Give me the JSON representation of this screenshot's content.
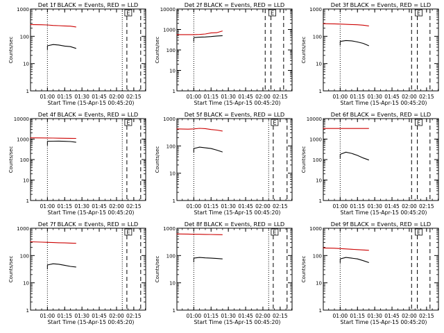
{
  "chart_data": [
    {
      "type": "line",
      "title": "Det 1f BLACK = Events, RED = LLD",
      "xlabel": "Start Time (15-Apr-15 00:45:20)",
      "ylabel": "Counts/sec",
      "xtick_labels": [
        "01:00",
        "01:15",
        "01:30",
        "01:45",
        "02:00",
        "02:15"
      ],
      "ytick_labels": [
        "1",
        "10",
        "100",
        "1000"
      ],
      "ylim": [
        1,
        1000
      ],
      "log_y": true,
      "markers": [
        {
          "label": "",
          "style": "dotted",
          "x": "01:00"
        },
        {
          "label": "",
          "style": "dotted",
          "x": "02:05"
        },
        {
          "label": "E",
          "style": "dashed",
          "x": "02:09"
        },
        {
          "label": "",
          "style": "dashed",
          "x": "02:21"
        }
      ],
      "series": [
        {
          "color": "#cc0000",
          "x": [
            "00:45",
            "00:55",
            "01:00",
            "01:05",
            "01:10",
            "01:15",
            "01:20",
            "01:25"
          ],
          "y": [
            270,
            265,
            260,
            250,
            245,
            240,
            235,
            220
          ]
        },
        {
          "color": "#000000",
          "x": [
            "01:00",
            "01:05",
            "01:10",
            "01:15",
            "01:20",
            "01:25"
          ],
          "y": [
            45,
            50,
            48,
            44,
            42,
            36
          ]
        }
      ]
    },
    {
      "type": "line",
      "title": "Det 2f BLACK = Events, RED = LLD",
      "xlabel": "Start Time (15-Apr-15 00:45:20)",
      "ylabel": "Counts/sec",
      "xtick_labels": [
        "01:00",
        "01:15",
        "01:30",
        "01:45",
        "02:00",
        "02:15"
      ],
      "ytick_labels": [
        "1",
        "10",
        "100",
        "1000",
        "10000"
      ],
      "ylim": [
        1,
        10000
      ],
      "log_y": true,
      "markers": [
        {
          "label": "",
          "style": "dotted",
          "x": "01:00"
        },
        {
          "label": "",
          "style": "dashed",
          "x": "02:02"
        },
        {
          "label": "E",
          "style": "dashed",
          "x": "02:07"
        },
        {
          "label": "",
          "style": "dashed",
          "x": "02:18"
        }
      ],
      "series": [
        {
          "color": "#cc0000",
          "x": [
            "00:45",
            "00:55",
            "01:00",
            "01:05",
            "01:10",
            "01:15",
            "01:20",
            "01:25"
          ],
          "y": [
            560,
            560,
            560,
            570,
            600,
            680,
            700,
            850
          ]
        },
        {
          "color": "#000000",
          "x": [
            "01:00",
            "01:05",
            "01:10",
            "01:15",
            "01:20",
            "01:25"
          ],
          "y": [
            400,
            420,
            430,
            450,
            480,
            500
          ]
        }
      ]
    },
    {
      "type": "line",
      "title": "Det 3f BLACK = Events, RED = LLD",
      "xlabel": "Start Time (15-Apr-15 00:45:20)",
      "ylabel": "Counts/sec",
      "xtick_labels": [
        "01:00",
        "01:15",
        "01:30",
        "01:45",
        "02:00",
        "02:15"
      ],
      "ytick_labels": [
        "1",
        "10",
        "100",
        "1000"
      ],
      "ylim": [
        1,
        1000
      ],
      "log_y": true,
      "markers": [
        {
          "label": "",
          "style": "dotted",
          "x": "01:00"
        },
        {
          "label": "",
          "style": "dashed",
          "x": "02:02"
        },
        {
          "label": "E",
          "style": "dashed",
          "x": "02:07"
        },
        {
          "label": "",
          "style": "dashed",
          "x": "02:18"
        }
      ],
      "series": [
        {
          "color": "#cc0000",
          "x": [
            "00:45",
            "00:55",
            "01:00",
            "01:05",
            "01:10",
            "01:15",
            "01:20",
            "01:25"
          ],
          "y": [
            290,
            285,
            280,
            275,
            270,
            265,
            255,
            240
          ]
        },
        {
          "color": "#000000",
          "x": [
            "01:00",
            "01:05",
            "01:10",
            "01:15",
            "01:20",
            "01:25"
          ],
          "y": [
            65,
            70,
            68,
            62,
            55,
            45
          ]
        }
      ]
    },
    {
      "type": "line",
      "title": "Det 4f BLACK = Events, RED = LLD",
      "xlabel": "Start Time (15-Apr-15 00:45:20)",
      "ylabel": "Counts/sec",
      "xtick_labels": [
        "01:00",
        "01:15",
        "01:30",
        "01:45",
        "02:00",
        "02:15"
      ],
      "ytick_labels": [
        "1",
        "10",
        "100",
        "1000",
        "10000"
      ],
      "ylim": [
        1,
        10000
      ],
      "log_y": true,
      "markers": [
        {
          "label": "",
          "style": "dotted",
          "x": "01:00"
        },
        {
          "label": "",
          "style": "dotted",
          "x": "02:05"
        },
        {
          "label": "E",
          "style": "dashed",
          "x": "02:09"
        },
        {
          "label": "",
          "style": "dashed",
          "x": "02:21"
        }
      ],
      "series": [
        {
          "color": "#cc0000",
          "x": [
            "00:45",
            "00:55",
            "01:00",
            "01:05",
            "01:10",
            "01:15",
            "01:20",
            "01:25"
          ],
          "y": [
            1150,
            1140,
            1130,
            1120,
            1110,
            1100,
            1090,
            1080
          ]
        },
        {
          "color": "#000000",
          "x": [
            "01:00",
            "01:05",
            "01:10",
            "01:15",
            "01:20",
            "01:25"
          ],
          "y": [
            780,
            790,
            800,
            780,
            760,
            700
          ]
        }
      ]
    },
    {
      "type": "line",
      "title": "Det 5f BLACK = Events, RED = LLD",
      "xlabel": "Start Time (15-Apr-15 00:45:20)",
      "ylabel": "Counts/sec",
      "xtick_labels": [
        "01:00",
        "01:15",
        "01:30",
        "01:45",
        "02:00",
        "02:15"
      ],
      "ytick_labels": [
        "1",
        "10",
        "100",
        "1000"
      ],
      "ylim": [
        1,
        1000
      ],
      "log_y": true,
      "markers": [
        {
          "label": "",
          "style": "dotted",
          "x": "01:00"
        },
        {
          "label": "",
          "style": "dotted",
          "x": "02:05"
        },
        {
          "label": "E",
          "style": "dashed",
          "x": "02:09"
        },
        {
          "label": "",
          "style": "dashed",
          "x": "02:21"
        }
      ],
      "series": [
        {
          "color": "#cc0000",
          "x": [
            "00:45",
            "00:55",
            "01:00",
            "01:05",
            "01:10",
            "01:15",
            "01:20",
            "01:25"
          ],
          "y": [
            420,
            410,
            420,
            440,
            430,
            400,
            380,
            350
          ]
        },
        {
          "color": "#000000",
          "x": [
            "01:00",
            "01:05",
            "01:10",
            "01:15",
            "01:20",
            "01:25"
          ],
          "y": [
            80,
            90,
            85,
            80,
            70,
            60
          ]
        }
      ]
    },
    {
      "type": "line",
      "title": "Det 6f BLACK = Events, RED = LLD",
      "xlabel": "Start Time (15-Apr-15 00:45:20)",
      "ylabel": "Counts/sec",
      "xtick_labels": [
        "01:00",
        "01:15",
        "01:30",
        "01:45",
        "02:00",
        "02:15"
      ],
      "ytick_labels": [
        "1",
        "10",
        "100",
        "1000",
        "10000"
      ],
      "ylim": [
        1,
        10000
      ],
      "log_y": true,
      "markers": [
        {
          "label": "",
          "style": "dotted",
          "x": "01:00"
        },
        {
          "label": "",
          "style": "dashed",
          "x": "02:02"
        },
        {
          "label": "E",
          "style": "dashed",
          "x": "02:07"
        },
        {
          "label": "",
          "style": "dashed",
          "x": "02:18"
        }
      ],
      "series": [
        {
          "color": "#cc0000",
          "x": [
            "00:45",
            "00:55",
            "01:00",
            "01:05",
            "01:10",
            "01:15",
            "01:20",
            "01:25"
          ],
          "y": [
            3300,
            3300,
            3300,
            3300,
            3300,
            3300,
            3300,
            3300
          ]
        },
        {
          "color": "#000000",
          "x": [
            "01:00",
            "01:05",
            "01:10",
            "01:15",
            "01:20",
            "01:25"
          ],
          "y": [
            180,
            230,
            200,
            160,
            120,
            95
          ]
        }
      ]
    },
    {
      "type": "line",
      "title": "Det 7f BLACK = Events, RED = LLD",
      "xlabel": "Start Time (15-Apr-15 00:45:20)",
      "ylabel": "Counts/sec",
      "xtick_labels": [
        "01:00",
        "01:15",
        "01:30",
        "01:45",
        "02:00",
        "02:15"
      ],
      "ytick_labels": [
        "1",
        "10",
        "100",
        "1000"
      ],
      "ylim": [
        1,
        1000
      ],
      "log_y": true,
      "markers": [
        {
          "label": "",
          "style": "dotted",
          "x": "01:00"
        },
        {
          "label": "",
          "style": "dotted",
          "x": "02:05"
        },
        {
          "label": "E",
          "style": "dashed",
          "x": "02:09"
        },
        {
          "label": "",
          "style": "dashed",
          "x": "02:21"
        }
      ],
      "series": [
        {
          "color": "#cc0000",
          "x": [
            "00:45",
            "00:55",
            "01:00",
            "01:05",
            "01:10",
            "01:15",
            "01:20",
            "01:25"
          ],
          "y": [
            320,
            310,
            305,
            300,
            295,
            290,
            285,
            280
          ]
        },
        {
          "color": "#000000",
          "x": [
            "01:00",
            "01:05",
            "01:10",
            "01:15",
            "01:20",
            "01:25"
          ],
          "y": [
            45,
            50,
            48,
            44,
            40,
            38
          ]
        }
      ]
    },
    {
      "type": "line",
      "title": "Det 8f BLACK = Events, RED = LLD",
      "xlabel": "Start Time (15-Apr-15 00:45:20)",
      "ylabel": "Counts/sec",
      "xtick_labels": [
        "01:00",
        "01:15",
        "01:30",
        "01:45",
        "02:00",
        "02:15"
      ],
      "ytick_labels": [
        "1",
        "10",
        "100",
        "1000"
      ],
      "ylim": [
        1,
        1000
      ],
      "log_y": true,
      "markers": [
        {
          "label": "",
          "style": "dotted",
          "x": "01:00"
        },
        {
          "label": "",
          "style": "dotted",
          "x": "02:05"
        },
        {
          "label": "E",
          "style": "dashed",
          "x": "02:09"
        },
        {
          "label": "",
          "style": "dashed",
          "x": "02:21"
        }
      ],
      "series": [
        {
          "color": "#cc0000",
          "x": [
            "00:45",
            "00:55",
            "01:00",
            "01:05",
            "01:10",
            "01:15",
            "01:20",
            "01:25"
          ],
          "y": [
            620,
            610,
            600,
            600,
            595,
            590,
            585,
            580
          ]
        },
        {
          "color": "#000000",
          "x": [
            "01:00",
            "01:05",
            "01:10",
            "01:15",
            "01:20",
            "01:25"
          ],
          "y": [
            80,
            85,
            82,
            80,
            78,
            75
          ]
        }
      ]
    },
    {
      "type": "line",
      "title": "Det 9f BLACK = Events, RED = LLD",
      "xlabel": "Start Time (15-Apr-15 00:45:20)",
      "ylabel": "Counts/sec",
      "xtick_labels": [
        "01:00",
        "01:15",
        "01:30",
        "01:45",
        "02:00",
        "02:15"
      ],
      "ytick_labels": [
        "1",
        "10",
        "100",
        "1000"
      ],
      "ylim": [
        1,
        1000
      ],
      "log_y": true,
      "markers": [
        {
          "label": "",
          "style": "dotted",
          "x": "01:00"
        },
        {
          "label": "",
          "style": "dashed",
          "x": "02:02"
        },
        {
          "label": "E",
          "style": "dashed",
          "x": "02:07"
        },
        {
          "label": "",
          "style": "dashed",
          "x": "02:18"
        }
      ],
      "series": [
        {
          "color": "#cc0000",
          "x": [
            "00:45",
            "00:55",
            "01:00",
            "01:05",
            "01:10",
            "01:15",
            "01:20",
            "01:25"
          ],
          "y": [
            190,
            185,
            180,
            175,
            170,
            165,
            160,
            155
          ]
        },
        {
          "color": "#000000",
          "x": [
            "01:00",
            "01:05",
            "01:10",
            "01:15",
            "01:20",
            "01:25"
          ],
          "y": [
            75,
            85,
            80,
            75,
            65,
            55
          ]
        }
      ]
    }
  ]
}
